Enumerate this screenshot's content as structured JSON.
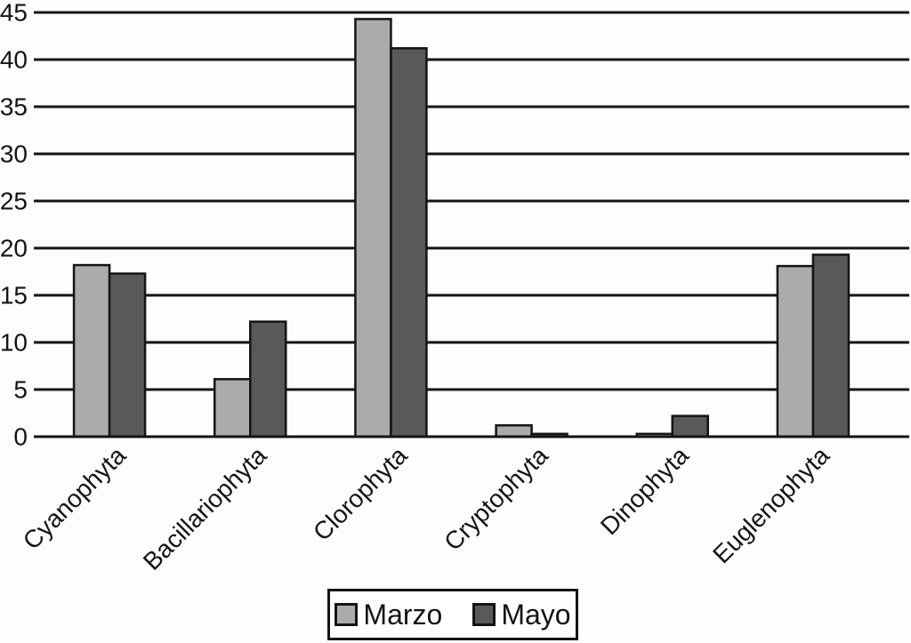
{
  "chart_data": {
    "type": "bar",
    "categories": [
      "Cyanophyta",
      "Bacillariophyta",
      "Clorophyta",
      "Cryptophyta",
      "Dinophyta",
      "Euglenophyta"
    ],
    "series": [
      {
        "name": "Marzo",
        "color": "#ababab",
        "values": [
          18.2,
          6.1,
          44.3,
          1.2,
          0.3,
          18.1
        ]
      },
      {
        "name": "Mayo",
        "color": "#595959",
        "values": [
          17.3,
          12.2,
          41.2,
          0.3,
          2.2,
          19.3
        ]
      }
    ],
    "title": "",
    "xlabel": "",
    "ylabel": "",
    "ylim": [
      0,
      45
    ],
    "ytick_step": 5,
    "yticks": [
      0,
      5,
      10,
      15,
      20,
      25,
      30,
      35,
      40,
      45
    ],
    "grid": true,
    "gridline_color": "#141414",
    "bar_outline_color": "#141414",
    "legend_position": "bottom",
    "x_label_rotation_deg": 45
  }
}
